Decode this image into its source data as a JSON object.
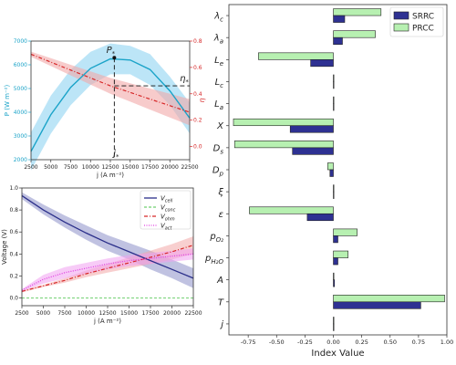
{
  "colors": {
    "cyan": "#1aa3c8",
    "cyan_band": "#8fd3f2",
    "red": "#d62728",
    "red_band": "#f2a8a8",
    "navy": "#2b2f8a",
    "navy_band": "#8c8fc9",
    "green": "#6fcf6f",
    "magenta": "#e040e0",
    "magenta_band": "#f0a0f0",
    "srrc": "#2e3192",
    "prcc": "#b7f0b1"
  },
  "chart_data": [
    {
      "type": "line",
      "x": [
        2500,
        5000,
        7500,
        10000,
        12500,
        15000,
        17500,
        20000,
        22500
      ],
      "series": [
        {
          "name": "P",
          "axis": "left",
          "values": [
            2350,
            3900,
            5050,
            5850,
            6250,
            6200,
            5800,
            4900,
            3750
          ],
          "band": [
            [
              1550,
              3150
            ],
            [
              3100,
              4700
            ],
            [
              4300,
              5800
            ],
            [
              5150,
              6550
            ],
            [
              5600,
              6900
            ],
            [
              5600,
              6800
            ],
            [
              5150,
              6450
            ],
            [
              4300,
              5500
            ],
            [
              3100,
              4400
            ]
          ]
        },
        {
          "name": "η",
          "axis": "right",
          "values": [
            0.7,
            0.64,
            0.58,
            0.52,
            0.46,
            0.41,
            0.36,
            0.31,
            0.26
          ],
          "band": [
            [
              0.68,
              0.72
            ],
            [
              0.61,
              0.67
            ],
            [
              0.54,
              0.62
            ],
            [
              0.47,
              0.57
            ],
            [
              0.4,
              0.52
            ],
            [
              0.34,
              0.48
            ],
            [
              0.28,
              0.44
            ],
            [
              0.22,
              0.4
            ],
            [
              0.16,
              0.36
            ]
          ]
        }
      ],
      "xlabel": "j (A m⁻²)",
      "ylabel": "P (W m⁻²)",
      "ylabel_right": "η",
      "xlim": [
        2500,
        22500
      ],
      "ylim": [
        2000,
        7000
      ],
      "ylim_right": [
        -0.1,
        0.8
      ],
      "xticks": [
        "2500",
        "5000",
        "7500",
        "10000",
        "12500",
        "15000",
        "17500",
        "20000",
        "22500"
      ],
      "yticks": [
        "2000",
        "3000",
        "4000",
        "5000",
        "6000",
        "7000"
      ],
      "yticks_right": [
        "0.0",
        "0.2",
        "0.4",
        "0.6",
        "0.8"
      ],
      "annotations": [
        {
          "text": "P",
          "sup": "*",
          "x": 13000,
          "y": 6300
        },
        {
          "text": "η",
          "sup": "*",
          "x": 22500,
          "y": 0.46
        },
        {
          "text": "j",
          "sup": "*",
          "x": 13000,
          "y": 2000
        }
      ],
      "grid": false
    },
    {
      "type": "line",
      "x": [
        2500,
        5000,
        7500,
        10000,
        12500,
        15000,
        17500,
        20000,
        22500
      ],
      "series": [
        {
          "name": "V_cell",
          "values": [
            0.93,
            0.8,
            0.69,
            0.59,
            0.5,
            0.42,
            0.34,
            0.26,
            0.18
          ],
          "band": [
            [
              0.9,
              0.96
            ],
            [
              0.76,
              0.85
            ],
            [
              0.64,
              0.75
            ],
            [
              0.53,
              0.66
            ],
            [
              0.43,
              0.57
            ],
            [
              0.35,
              0.5
            ],
            [
              0.26,
              0.43
            ],
            [
              0.18,
              0.35
            ],
            [
              0.09,
              0.27
            ]
          ]
        },
        {
          "name": "V_conc",
          "values": [
            0,
            0,
            0,
            0,
            0,
            0,
            0,
            0,
            0
          ]
        },
        {
          "name": "V_ohm",
          "values": [
            0.06,
            0.11,
            0.16,
            0.22,
            0.27,
            0.32,
            0.37,
            0.42,
            0.48
          ],
          "band": [
            [
              0.05,
              0.07
            ],
            [
              0.1,
              0.12
            ],
            [
              0.14,
              0.18
            ],
            [
              0.19,
              0.25
            ],
            [
              0.23,
              0.31
            ],
            [
              0.27,
              0.37
            ],
            [
              0.31,
              0.43
            ],
            [
              0.35,
              0.49
            ],
            [
              0.4,
              0.56
            ]
          ]
        },
        {
          "name": "V_act",
          "values": [
            0.07,
            0.17,
            0.23,
            0.27,
            0.31,
            0.34,
            0.36,
            0.38,
            0.4
          ],
          "band": [
            [
              0.06,
              0.08
            ],
            [
              0.13,
              0.21
            ],
            [
              0.18,
              0.28
            ],
            [
              0.22,
              0.32
            ],
            [
              0.26,
              0.36
            ],
            [
              0.29,
              0.39
            ],
            [
              0.31,
              0.41
            ],
            [
              0.33,
              0.43
            ],
            [
              0.35,
              0.45
            ]
          ]
        }
      ],
      "xlabel": "j (A m⁻²)",
      "ylabel": "Voltage (V)",
      "xlim": [
        2500,
        22500
      ],
      "ylim": [
        -0.07,
        1.0
      ],
      "xticks": [
        "2500",
        "5000",
        "7500",
        "10000",
        "12500",
        "15000",
        "17500",
        "20000",
        "22500"
      ],
      "yticks": [
        "0.0",
        "0.2",
        "0.4",
        "0.6",
        "0.8",
        "1.0"
      ],
      "legend": "top-right",
      "grid": false
    },
    {
      "type": "bar",
      "orientation": "horizontal",
      "categories": [
        "λc",
        "λa",
        "Le",
        "Lc",
        "La",
        "X",
        "Ds",
        "Dp",
        "ξ",
        "ε",
        "pO2",
        "pH2O",
        "A",
        "T",
        "j"
      ],
      "category_labels": [
        {
          "base": "λ",
          "sub": "c"
        },
        {
          "base": "λ",
          "sub": "a"
        },
        {
          "base": "L",
          "sub": "e"
        },
        {
          "base": "L",
          "sub": "c"
        },
        {
          "base": "L",
          "sub": "a"
        },
        {
          "base": "X",
          "sub": ""
        },
        {
          "base": "D",
          "sub": "s"
        },
        {
          "base": "D",
          "sub": "p"
        },
        {
          "base": "ξ",
          "sub": ""
        },
        {
          "base": "ε",
          "sub": ""
        },
        {
          "base": "p",
          "sub": "O₂"
        },
        {
          "base": "p",
          "sub": "H₂O"
        },
        {
          "base": "A",
          "sub": ""
        },
        {
          "base": "T",
          "sub": ""
        },
        {
          "base": "j",
          "sub": ""
        }
      ],
      "series": [
        {
          "name": "SRRC",
          "values": [
            0.1,
            0.08,
            -0.2,
            0.0,
            0.0,
            -0.38,
            -0.36,
            -0.03,
            0.0,
            -0.23,
            0.04,
            0.04,
            0.01,
            0.77,
            0.0
          ]
        },
        {
          "name": "PRCC",
          "values": [
            0.42,
            0.37,
            -0.66,
            0.0,
            0.0,
            -0.88,
            -0.87,
            -0.05,
            0.0,
            -0.74,
            0.21,
            0.13,
            0.0,
            0.98,
            0.0
          ]
        }
      ],
      "xlabel": "Index Value",
      "xlim": [
        -0.92,
        1.0
      ],
      "xticks": [
        "-0.75",
        "-0.50",
        "-0.25",
        "0.00",
        "0.25",
        "0.50",
        "0.75",
        "1.00"
      ],
      "legend": "top-right",
      "grid": false
    }
  ]
}
